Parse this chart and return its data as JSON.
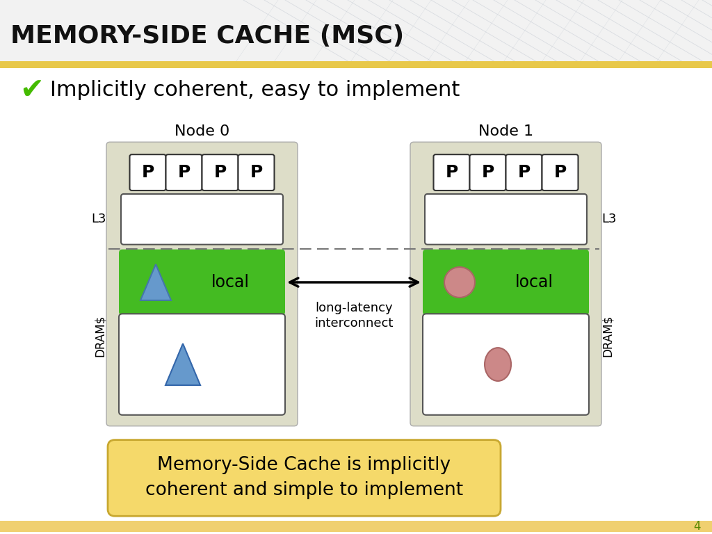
{
  "title": "MEMORY-SIDE CACHE (MSC)",
  "header_bg_top": "#F0F0F0",
  "header_bg_bot": "#D8D8D8",
  "header_accent": "#E8C84A",
  "slide_bg": "#FFFFFF",
  "bullet_text": "Implicitly coherent, easy to implement",
  "node0_label": "Node 0",
  "node1_label": "Node 1",
  "l3_label": "L3",
  "drams_label": "DRAM$",
  "arrow_label": "long-latency\ninterconnect",
  "local_label": "local",
  "box_note": "Memory-Side Cache is implicitly\ncoherent and simple to implement",
  "note_bg": "#F5D96A",
  "note_border": "#C8A830",
  "node_bg": "#DDDDC8",
  "green_bg": "#44BB22",
  "p_bg": "#FFFFFF",
  "white_box_bg": "#FFFFFF",
  "triangle_color": "#6699CC",
  "circle_color": "#CC8888",
  "page_num": "4",
  "footer_bg": "#F0D070"
}
